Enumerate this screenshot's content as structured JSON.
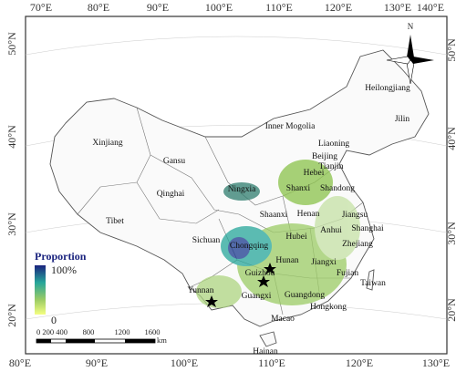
{
  "map": {
    "top_labels": [
      "70°E",
      "80°E",
      "90°E",
      "100°E",
      "110°E",
      "120°E",
      "130°E",
      "140°E"
    ],
    "bottom_labels": [
      "80°E",
      "90°E",
      "100°E",
      "110°E",
      "120°E",
      "130°E"
    ],
    "left_labels": [
      "50°N",
      "40°N",
      "30°N",
      "20°N"
    ],
    "right_labels": [
      "50°N",
      "40°N",
      "30°N",
      "20°N"
    ],
    "regions": [
      "Heilongjiang",
      "Jilin",
      "Liaoning",
      "Inner Mogolia",
      "Beijing",
      "Tianjin",
      "Hebei",
      "Shandong",
      "Shanxi",
      "Ningxia",
      "Gansu",
      "Xinjiang",
      "Qinghai",
      "Tibet",
      "Shaanxi",
      "Henan",
      "Jiangsu",
      "Anhui",
      "Shanghai",
      "Sichuan",
      "Chongqing",
      "Hubei",
      "Zhejiang",
      "Hunan",
      "Jiangxi",
      "Fujian",
      "Guizhou",
      "Yunnan",
      "Guangxi",
      "Guangdong",
      "Taiwan",
      "Hongkong",
      "Macao",
      "Hainan"
    ],
    "legend": {
      "title": "Proportion",
      "max": "100%",
      "min": "0"
    },
    "scale_bar": {
      "labels": [
        "0 200 400",
        "800",
        "1200",
        "1600"
      ],
      "unit": "km"
    },
    "north": "N"
  }
}
